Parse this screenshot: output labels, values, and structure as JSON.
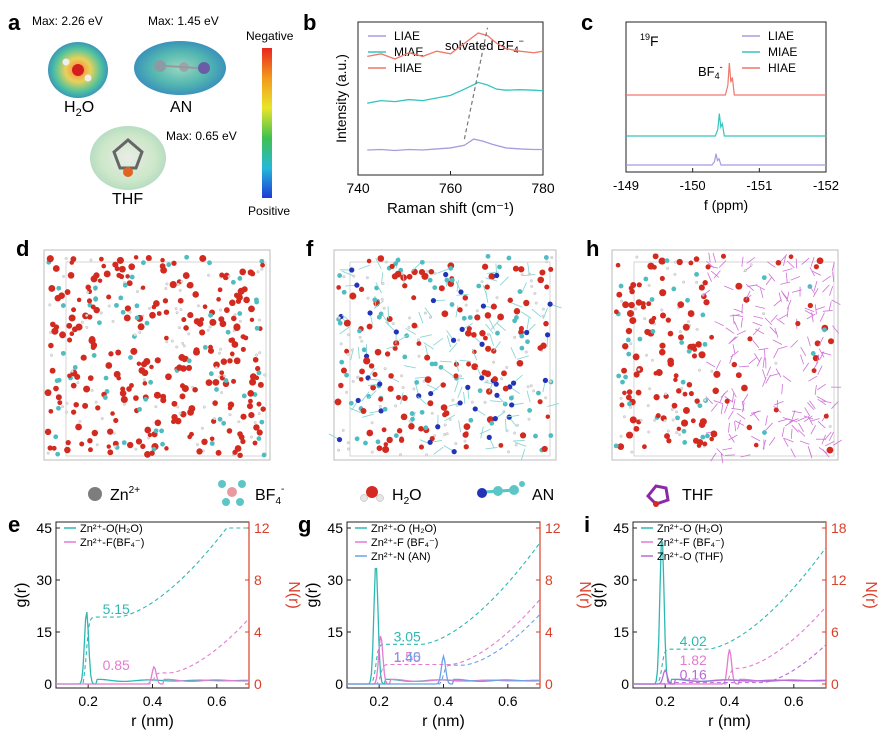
{
  "panels": {
    "a": {
      "label": "a",
      "molecules": [
        {
          "name": "H2O",
          "display": "H",
          "sub": "2",
          "tail": "O",
          "max_label": "Max: 2.26 eV"
        },
        {
          "name": "AN",
          "display": "AN",
          "max_label": "Max: 1.45 eV"
        },
        {
          "name": "THF",
          "display": "THF",
          "max_label": "Max: 0.65 eV"
        }
      ],
      "colorbar": {
        "top": "Negative",
        "bottom": "Positive"
      }
    },
    "b": {
      "label": "b",
      "annotation": "solvated BF",
      "annotation_sub": "4",
      "annotation_sup": "−"
    },
    "c": {
      "label": "c",
      "nucleus_sup": "19",
      "nucleus": "F",
      "peak_label": "BF",
      "peak_sub": "4",
      "peak_sup": "-"
    },
    "d": {
      "label": "d"
    },
    "f": {
      "label": "f"
    },
    "h": {
      "label": "h"
    },
    "e": {
      "label": "e",
      "cn_values": [
        "5.15",
        "0.85"
      ]
    },
    "g": {
      "label": "g",
      "cn_values": [
        "3.05",
        "1.50",
        "1.45"
      ]
    },
    "i": {
      "label": "i",
      "cn_values": [
        "4.02",
        "1.82",
        "0.16"
      ]
    }
  },
  "species_legend": [
    {
      "icon": "zinc-ion",
      "text": "Zn",
      "sup": "2+"
    },
    {
      "icon": "bf4-anion",
      "text": "BF",
      "sub": "4",
      "sup": "-"
    },
    {
      "icon": "water",
      "text": "H",
      "sub": "2",
      "tail": "O"
    },
    {
      "icon": "acetonitrile",
      "text": "AN"
    },
    {
      "icon": "tetrahydrofuran",
      "text": "THF"
    }
  ],
  "colors": {
    "liae": "#a89be0",
    "miae": "#35c4c0",
    "hiae": "#f0776a",
    "zn_o": "#2fb8b3",
    "zn_f": "#e47bd0",
    "zn_n": "#6aa2e8",
    "zn_o_thf": "#b86ad8",
    "nr_axis": "#d9402a"
  },
  "chart_data": [
    {
      "type": "line",
      "panel": "b",
      "xlabel": "Raman shift (cm⁻¹)",
      "ylabel": "Intensity (a.u.)",
      "xlim": [
        740,
        780
      ],
      "xticks": [
        740,
        760,
        780
      ],
      "legend_position": "top-left",
      "series": [
        {
          "name": "LIAE",
          "x": [
            742,
            745,
            748,
            751,
            754,
            757,
            760,
            763,
            765,
            767,
            769,
            772,
            775,
            778,
            780
          ],
          "y": [
            0.25,
            0.26,
            0.24,
            0.26,
            0.25,
            0.27,
            0.29,
            0.34,
            0.46,
            0.42,
            0.36,
            0.29,
            0.27,
            0.26,
            0.26
          ]
        },
        {
          "name": "MIAE",
          "x": [
            742,
            745,
            748,
            751,
            754,
            757,
            760,
            763,
            766,
            768,
            770,
            772,
            775,
            778,
            780
          ],
          "y": [
            1.15,
            1.2,
            1.18,
            1.22,
            1.2,
            1.25,
            1.3,
            1.42,
            1.55,
            1.5,
            1.42,
            1.4,
            1.41,
            1.4,
            1.39
          ]
        },
        {
          "name": "HIAE",
          "x": [
            742,
            745,
            748,
            751,
            754,
            757,
            760,
            763,
            766,
            768,
            770,
            772,
            775,
            778,
            780
          ],
          "y": [
            2.05,
            2.1,
            2.0,
            2.12,
            2.05,
            2.15,
            2.1,
            2.3,
            2.5,
            2.45,
            2.3,
            2.2,
            2.15,
            2.12,
            2.15
          ]
        }
      ]
    },
    {
      "type": "line",
      "panel": "c",
      "xlabel": "f (ppm)",
      "xlim": [
        -149,
        -152
      ],
      "xticks": [
        -149,
        -150,
        -151,
        -152
      ],
      "legend_position": "top-right",
      "series": [
        {
          "name": "LIAE",
          "peak_x": -150.35,
          "peak_h": 0.35
        },
        {
          "name": "MIAE",
          "peak_x": -150.4,
          "peak_h": 0.7
        },
        {
          "name": "HIAE",
          "peak_x": -150.55,
          "peak_h": 1.0
        }
      ]
    },
    {
      "type": "line",
      "panel": "e",
      "xlabel": "r (nm)",
      "ylabel": "g(r)",
      "y2label": "N(r)",
      "xlim": [
        0.1,
        0.7
      ],
      "ylim": [
        0,
        45
      ],
      "y2lim": [
        0,
        12
      ],
      "xticks": [
        0.2,
        0.4,
        0.6
      ],
      "yticks": [
        0,
        15,
        30,
        45
      ],
      "y2ticks": [
        0,
        4,
        8,
        12
      ],
      "series": [
        {
          "name": "Zn²⁺-O(H₂O)",
          "gr_peak_x": 0.195,
          "gr_peak": 21,
          "nr_plateau": 5.15,
          "nr_rise_x": 0.29
        },
        {
          "name": "Zn²⁺-F(BF₄⁻)",
          "gr_peak_x": 0.405,
          "gr_peak": 5,
          "nr_plateau": 0.85,
          "nr_rise_x": 0.45
        }
      ]
    },
    {
      "type": "line",
      "panel": "g",
      "xlabel": "r (nm)",
      "ylabel": "g(r)",
      "y2label": "N(r)",
      "xlim": [
        0.1,
        0.7
      ],
      "ylim": [
        0,
        45
      ],
      "y2lim": [
        0,
        12
      ],
      "xticks": [
        0.2,
        0.4,
        0.6
      ],
      "yticks": [
        0,
        15,
        30,
        45
      ],
      "y2ticks": [
        0,
        4,
        8,
        12
      ],
      "series": [
        {
          "name": "Zn²⁺-O (H₂O)",
          "gr_peak_x": 0.19,
          "gr_peak": 35,
          "nr_plateau": 3.05,
          "nr_rise_x": 0.33
        },
        {
          "name": "Zn²⁺-F (BF₄⁻)",
          "gr_peak_x": 0.205,
          "gr_peak": 14,
          "nr_plateau": 1.5,
          "nr_rise_x": 0.42
        },
        {
          "name": "Zn²⁺-N (AN)",
          "gr_peak_x": 0.4,
          "gr_peak": 8,
          "nr_plateau": 1.45,
          "nr_rise_x": 0.46
        }
      ]
    },
    {
      "type": "line",
      "panel": "i",
      "xlabel": "r (nm)",
      "ylabel": "g(r)",
      "y2label": "N(r)",
      "xlim": [
        0.1,
        0.7
      ],
      "ylim": [
        0,
        45
      ],
      "y2lim": [
        0,
        18
      ],
      "xticks": [
        0.2,
        0.4,
        0.6
      ],
      "yticks": [
        0,
        15,
        30,
        45
      ],
      "y2ticks": [
        0,
        6,
        12,
        18
      ],
      "series": [
        {
          "name": "Zn²⁺-O (H₂O)",
          "gr_peak_x": 0.19,
          "gr_peak": 43,
          "nr_plateau": 4.02,
          "nr_rise_x": 0.33
        },
        {
          "name": "Zn²⁺-F (BF₄⁻)",
          "gr_peak_x": 0.4,
          "gr_peak": 10,
          "nr_plateau": 1.82,
          "nr_rise_x": 0.43
        },
        {
          "name": "Zn²⁺-O (THF)",
          "gr_peak_x": 0.2,
          "gr_peak": 4,
          "nr_plateau": 0.16,
          "nr_rise_x": 0.5
        }
      ]
    }
  ]
}
